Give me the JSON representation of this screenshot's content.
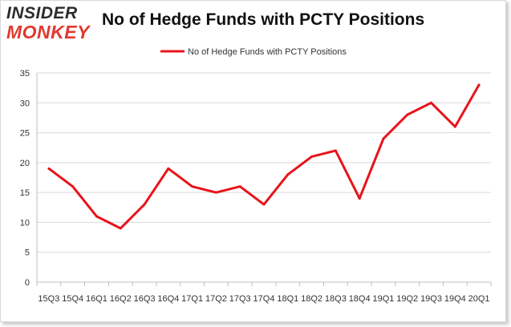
{
  "logo": {
    "line1": "INSIDER",
    "line2": "MONKEY"
  },
  "chart_data": {
    "type": "line",
    "title": "No of Hedge Funds with PCTY Positions",
    "xlabel": "",
    "ylabel": "",
    "categories": [
      "15Q3",
      "15Q4",
      "16Q1",
      "16Q2",
      "16Q3",
      "16Q4",
      "17Q1",
      "17Q2",
      "17Q3",
      "17Q4",
      "18Q1",
      "18Q2",
      "18Q3",
      "18Q4",
      "19Q1",
      "19Q2",
      "19Q3",
      "19Q4",
      "20Q1"
    ],
    "series": [
      {
        "name": "No of Hedge Funds with PCTY Positions",
        "values": [
          19,
          16,
          11,
          9,
          13,
          19,
          16,
          15,
          16,
          13,
          18,
          21,
          22,
          14,
          24,
          28,
          30,
          26,
          33
        ]
      }
    ],
    "ylim": [
      0,
      35
    ],
    "yticks": [
      0,
      5,
      10,
      15,
      20,
      25,
      30,
      35
    ],
    "grid": true,
    "legend": "top-center",
    "color": "#e8141b"
  }
}
